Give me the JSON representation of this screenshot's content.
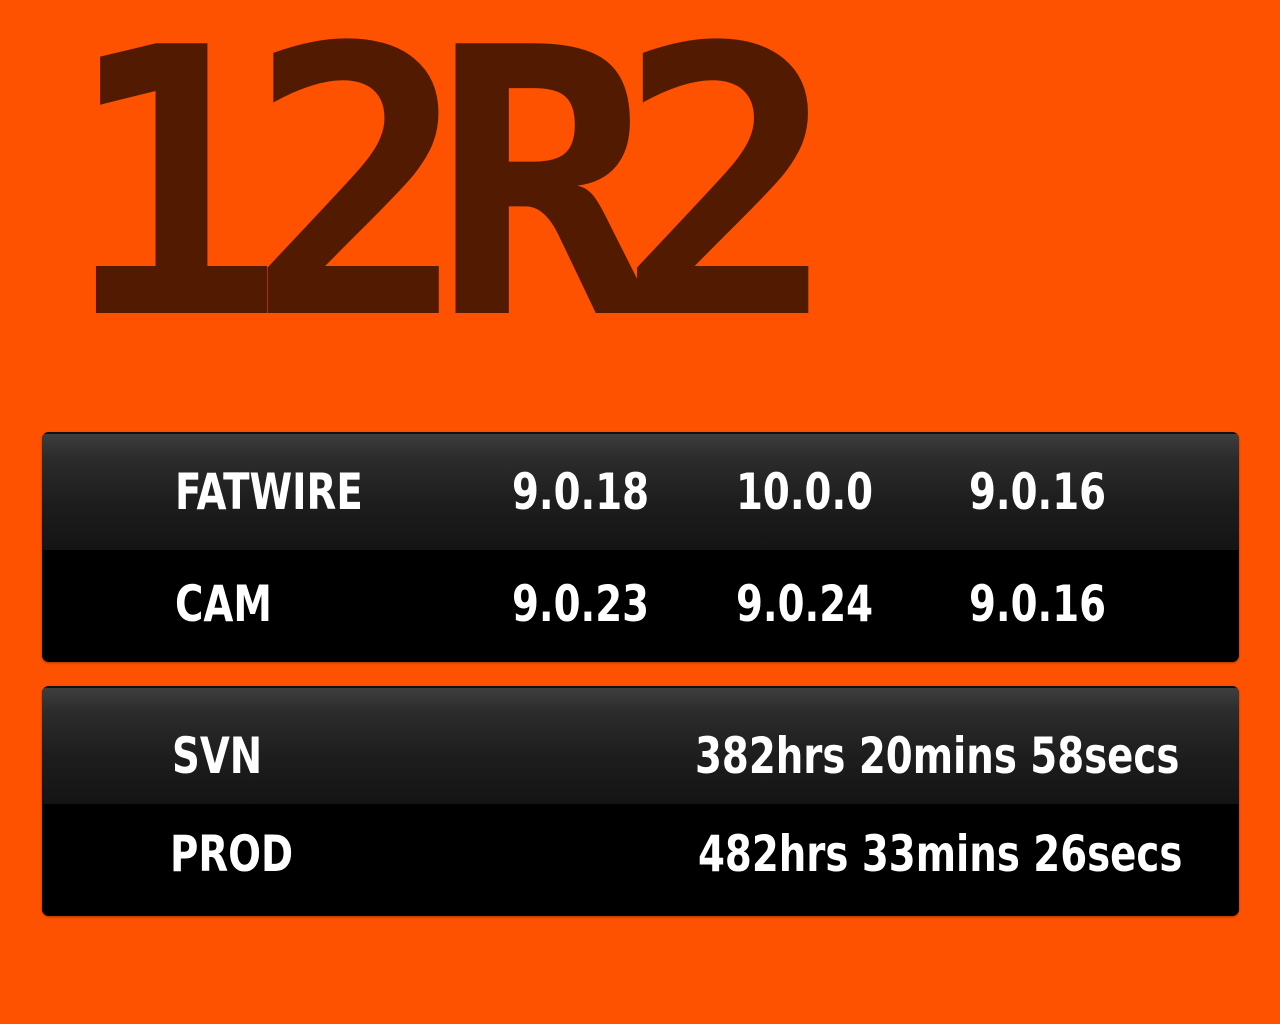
{
  "title": "12R2",
  "colors": {
    "background": "#ff5200",
    "title_text": "#521b00",
    "panel_text": "#ffffff",
    "panel_bg": "#000000"
  },
  "versions": {
    "rows": [
      {
        "label": "FATWIRE",
        "values": [
          "9.0.18",
          "10.0.0",
          "9.0.16"
        ]
      },
      {
        "label": "CAM",
        "values": [
          "9.0.23",
          "9.0.24",
          "9.0.16"
        ]
      }
    ]
  },
  "uptime": {
    "rows": [
      {
        "label": "SVN",
        "value": "382hrs 20mins 58secs"
      },
      {
        "label": "PROD",
        "value": "482hrs 33mins 26secs"
      }
    ]
  }
}
